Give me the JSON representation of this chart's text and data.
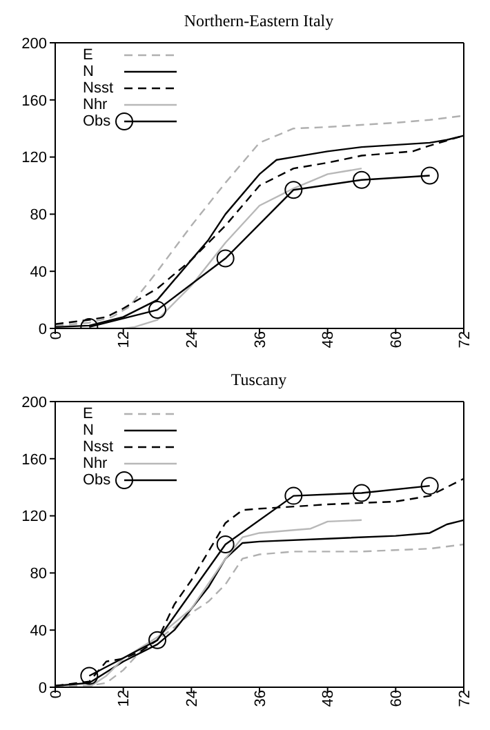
{
  "chart_data": [
    {
      "type": "line",
      "title": "Northern-Eastern Italy",
      "xlim": [
        0,
        72
      ],
      "xticks": [
        0,
        12,
        24,
        36,
        48,
        60,
        72
      ],
      "ylim": [
        0,
        200
      ],
      "yticks": [
        0,
        40,
        80,
        120,
        160,
        200
      ],
      "grid": false,
      "legend": "top left",
      "series": [
        {
          "name": "E",
          "color": "#b0b0b0",
          "line_style": "dashed",
          "marker": "none",
          "x": [
            0,
            6,
            10,
            13,
            16,
            18,
            24,
            30,
            36,
            42,
            48,
            60,
            66,
            72
          ],
          "values": [
            2,
            4,
            8,
            15,
            30,
            40,
            72,
            102,
            130,
            140,
            141,
            144,
            146,
            149
          ]
        },
        {
          "name": "N",
          "color": "#000000",
          "line_style": "solid",
          "marker": "none",
          "x": [
            0,
            6,
            12,
            18,
            24,
            27,
            30,
            36,
            39,
            42,
            48,
            54,
            66,
            69,
            72
          ],
          "values": [
            1,
            2,
            8,
            20,
            48,
            62,
            80,
            108,
            118,
            120,
            124,
            127,
            130,
            132,
            135
          ]
        },
        {
          "name": "Nsst",
          "color": "#000000",
          "line_style": "dashed",
          "marker": "none",
          "x": [
            0,
            6,
            9,
            12,
            18,
            24,
            30,
            36,
            42,
            48,
            54,
            60,
            63,
            66,
            72
          ],
          "values": [
            3,
            6,
            8,
            14,
            28,
            48,
            72,
            100,
            112,
            116,
            121,
            123,
            124,
            128,
            135
          ]
        },
        {
          "name": "Nhr",
          "color": "#b8b8b8",
          "line_style": "solid",
          "marker": "none",
          "x": [
            0,
            12,
            14,
            18,
            24,
            30,
            36,
            42,
            48,
            51,
            54
          ],
          "values": [
            0,
            0,
            1,
            6,
            30,
            60,
            86,
            98,
            108,
            110,
            112
          ]
        },
        {
          "name": "Obs",
          "color": "#000000",
          "line_style": "solid",
          "marker": "circle",
          "x": [
            6,
            18,
            30,
            42,
            54,
            66
          ],
          "values": [
            1,
            13,
            49,
            97,
            104,
            107
          ]
        }
      ]
    },
    {
      "type": "line",
      "title": "Tuscany",
      "xlim": [
        0,
        72
      ],
      "xticks": [
        0,
        12,
        24,
        36,
        48,
        60,
        72
      ],
      "ylim": [
        0,
        200
      ],
      "yticks": [
        0,
        40,
        80,
        120,
        160,
        200
      ],
      "grid": false,
      "legend": "top left",
      "series": [
        {
          "name": "E",
          "color": "#b0b0b0",
          "line_style": "dashed",
          "marker": "none",
          "x": [
            0,
            6,
            9,
            12,
            15,
            18,
            21,
            24,
            27,
            30,
            33,
            36,
            42,
            54,
            66,
            72
          ],
          "values": [
            1,
            1,
            3,
            12,
            25,
            33,
            42,
            52,
            60,
            72,
            90,
            93,
            95,
            95,
            97,
            100
          ]
        },
        {
          "name": "N",
          "color": "#000000",
          "line_style": "solid",
          "marker": "none",
          "x": [
            0,
            6,
            12,
            18,
            21,
            24,
            27,
            30,
            33,
            36,
            48,
            60,
            66,
            69,
            72
          ],
          "values": [
            1,
            3,
            18,
            30,
            40,
            55,
            70,
            90,
            101,
            102,
            104,
            106,
            108,
            114,
            117
          ]
        },
        {
          "name": "Nsst",
          "color": "#000000",
          "line_style": "dashed",
          "marker": "none",
          "x": [
            0,
            6,
            9,
            12,
            15,
            18,
            21,
            24,
            27,
            30,
            33,
            36,
            48,
            60,
            66,
            72
          ],
          "values": [
            1,
            4,
            18,
            20,
            25,
            33,
            58,
            75,
            95,
            115,
            124,
            125,
            128,
            130,
            134,
            146
          ]
        },
        {
          "name": "Nhr",
          "color": "#b8b8b8",
          "line_style": "solid",
          "marker": "none",
          "x": [
            0,
            6,
            9,
            12,
            18,
            24,
            30,
            33,
            36,
            42,
            45,
            48,
            54
          ],
          "values": [
            0,
            0,
            8,
            20,
            35,
            55,
            90,
            105,
            108,
            110,
            111,
            116,
            117
          ]
        },
        {
          "name": "Obs",
          "color": "#000000",
          "line_style": "solid",
          "marker": "circle",
          "x": [
            6,
            18,
            30,
            42,
            54,
            66
          ],
          "values": [
            8,
            33,
            100,
            134,
            136,
            141
          ]
        }
      ]
    }
  ]
}
